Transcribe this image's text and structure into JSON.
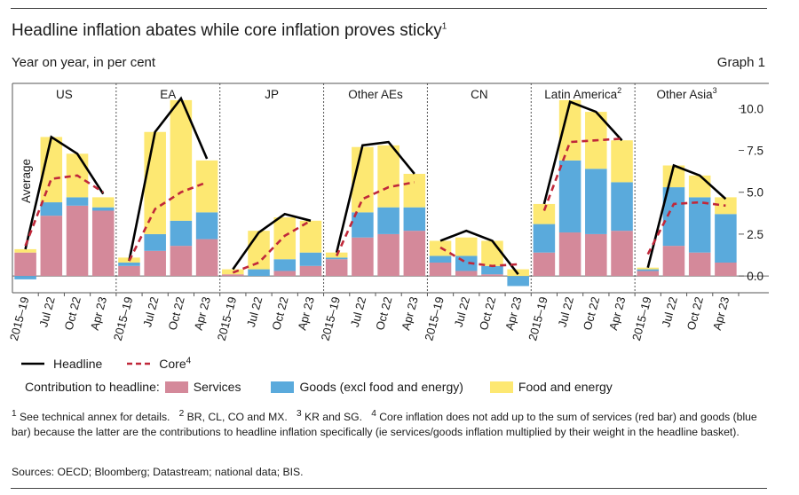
{
  "header": {
    "title": "Headline inflation abates while core inflation proves sticky",
    "title_sup": "1",
    "subtitle": "Year on year, in per cent",
    "graph_label": "Graph 1"
  },
  "colors": {
    "services": "#d4899a",
    "goods": "#5aaadc",
    "food": "#fde872",
    "headline": "#000000",
    "core": "#c0283a"
  },
  "chart_data": {
    "type": "bar",
    "stacked": true,
    "title": "Headline inflation abates while core inflation proves sticky",
    "ylabel": "Year on year, in per cent",
    "ylim": [
      -1.0,
      11.5
    ],
    "y_ticks": [
      "10.0",
      "7.5",
      "5.0",
      "2.5",
      "0.0"
    ],
    "y_tick_values": [
      10.0,
      7.5,
      5.0,
      2.5,
      0.0
    ],
    "y_axis_side": "right",
    "categories": [
      "2015–19",
      "Jul 22",
      "Oct 22",
      "Apr 23"
    ],
    "average_label": "Average",
    "panels": [
      {
        "name": "US",
        "sup": "",
        "services": [
          1.4,
          3.6,
          4.2,
          3.9
        ],
        "goods": [
          -0.2,
          0.8,
          0.5,
          0.2
        ],
        "food": [
          0.2,
          3.9,
          2.6,
          0.6
        ],
        "headline": [
          1.6,
          8.3,
          7.3,
          4.9
        ],
        "core": [
          1.8,
          5.8,
          6.0,
          5.0
        ]
      },
      {
        "name": "EA",
        "sup": "",
        "services": [
          0.6,
          1.5,
          1.8,
          2.2
        ],
        "goods": [
          0.2,
          1.0,
          1.5,
          1.6
        ],
        "food": [
          0.3,
          6.1,
          7.2,
          3.1
        ],
        "headline": [
          0.9,
          8.6,
          10.6,
          7.0
        ],
        "core": [
          0.9,
          4.0,
          5.0,
          5.6
        ]
      },
      {
        "name": "JP",
        "sup": "",
        "services": [
          0.1,
          0.0,
          0.3,
          0.6
        ],
        "goods": [
          0.0,
          0.4,
          0.7,
          0.8
        ],
        "food": [
          0.3,
          2.3,
          2.5,
          1.9
        ],
        "headline": [
          0.4,
          2.6,
          3.7,
          3.3
        ],
        "core": [
          0.2,
          0.8,
          2.4,
          3.3
        ]
      },
      {
        "name": "Other AEs",
        "sup": "",
        "services": [
          1.0,
          2.3,
          2.5,
          2.7
        ],
        "goods": [
          0.1,
          1.5,
          1.6,
          1.4
        ],
        "food": [
          0.3,
          3.9,
          3.7,
          2.0
        ],
        "headline": [
          1.4,
          7.8,
          8.0,
          6.1
        ],
        "core": [
          1.2,
          4.6,
          5.3,
          5.6
        ]
      },
      {
        "name": "CN",
        "sup": "",
        "services": [
          0.8,
          0.3,
          0.1,
          0.0
        ],
        "goods": [
          0.4,
          0.9,
          0.5,
          -0.6
        ],
        "food": [
          0.9,
          1.1,
          1.5,
          0.4
        ],
        "headline": [
          2.1,
          2.7,
          2.1,
          0.1
        ],
        "core": [
          1.7,
          0.8,
          0.6,
          0.7
        ]
      },
      {
        "name": "Latin America",
        "sup": "2",
        "services": [
          1.4,
          2.6,
          2.5,
          2.7
        ],
        "goods": [
          1.7,
          4.3,
          3.9,
          2.9
        ],
        "food": [
          1.2,
          3.6,
          3.4,
          2.5
        ],
        "headline": [
          4.3,
          10.4,
          9.8,
          8.1
        ],
        "core": [
          3.9,
          8.0,
          8.1,
          8.2
        ]
      },
      {
        "name": "Other Asia",
        "sup": "3",
        "services": [
          0.3,
          1.8,
          1.4,
          0.8
        ],
        "goods": [
          0.1,
          3.5,
          3.3,
          2.9
        ],
        "food": [
          0.1,
          1.3,
          1.3,
          1.0
        ],
        "headline": [
          0.5,
          6.6,
          6.0,
          4.6
        ],
        "core": [
          1.3,
          4.3,
          4.4,
          4.2
        ]
      }
    ],
    "legend": {
      "headline": "Headline",
      "core": "Core",
      "core_sup": "4",
      "contribution_label": "Contribution to headline:",
      "services": "Services",
      "goods": "Goods (excl food and energy)",
      "food": "Food and energy"
    }
  },
  "footnotes": {
    "n1_num": "1",
    "n1_text": "See technical annex for details.",
    "n2_num": "2",
    "n2_text": "BR, CL, CO and MX.",
    "n3_num": "3",
    "n3_text": "KR and SG.",
    "n4_num": "4",
    "n4_text": "Core inflation does not add up to the sum of services (red bar) and goods (blue bar) because the latter are the contributions to headline inflation specifically (ie services/goods inflation multiplied by their weight in the headline basket)."
  },
  "sources": "Sources: OECD; Bloomberg; Datastream; national data; BIS."
}
